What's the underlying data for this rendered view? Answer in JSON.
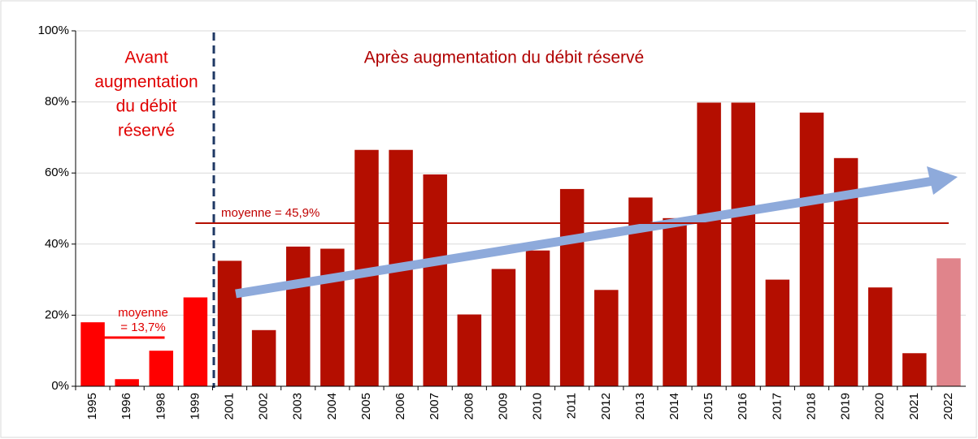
{
  "chart_data": {
    "type": "bar",
    "categories": [
      "1995",
      "1996",
      "1998",
      "1999",
      "2001",
      "2002",
      "2003",
      "2004",
      "2005",
      "2006",
      "2007",
      "2008",
      "2009",
      "2010",
      "2011",
      "2012",
      "2013",
      "2014",
      "2015",
      "2016",
      "2017",
      "2018",
      "2019",
      "2020",
      "2021",
      "2022"
    ],
    "values": [
      18,
      2,
      10,
      25,
      35.3,
      15.8,
      39.3,
      38.7,
      66.5,
      66.5,
      59.6,
      20.2,
      33,
      38.2,
      55.5,
      27.1,
      53.1,
      47.3,
      79.8,
      79.8,
      30,
      77,
      64.2,
      27.8,
      9.3,
      36
    ],
    "colors": [
      "#ff0000",
      "#ff0000",
      "#ff0000",
      "#ff0000",
      "#b40e00",
      "#b40e00",
      "#b40e00",
      "#b40e00",
      "#b40e00",
      "#b40e00",
      "#b40e00",
      "#b40e00",
      "#b40e00",
      "#b40e00",
      "#b40e00",
      "#b40e00",
      "#b40e00",
      "#b40e00",
      "#b40e00",
      "#b40e00",
      "#b40e00",
      "#b40e00",
      "#b40e00",
      "#b40e00",
      "#b40e00",
      "#e0848b"
    ],
    "ylim": [
      0,
      100
    ],
    "yticks": [
      {
        "value": 0,
        "label": "0%"
      },
      {
        "value": 20,
        "label": "20%"
      },
      {
        "value": 40,
        "label": "40%"
      },
      {
        "value": 60,
        "label": "60%"
      },
      {
        "value": 80,
        "label": "80%"
      },
      {
        "value": 100,
        "label": "100%"
      }
    ],
    "grid": true,
    "annotations": [
      {
        "lines": [
          "Avant",
          "augmentation",
          "du débit",
          "réservé"
        ]
      },
      {
        "lines": [
          "Après augmentation du débit réservé"
        ]
      }
    ],
    "mean_lines": [
      {
        "value": 45.9,
        "lines": [
          "moyenne = 45,9%"
        ],
        "color": "#b40e00"
      },
      {
        "value": 13.7,
        "lines": [
          "moyenne",
          "= 13,7%"
        ],
        "color": "#ff0000"
      }
    ]
  }
}
